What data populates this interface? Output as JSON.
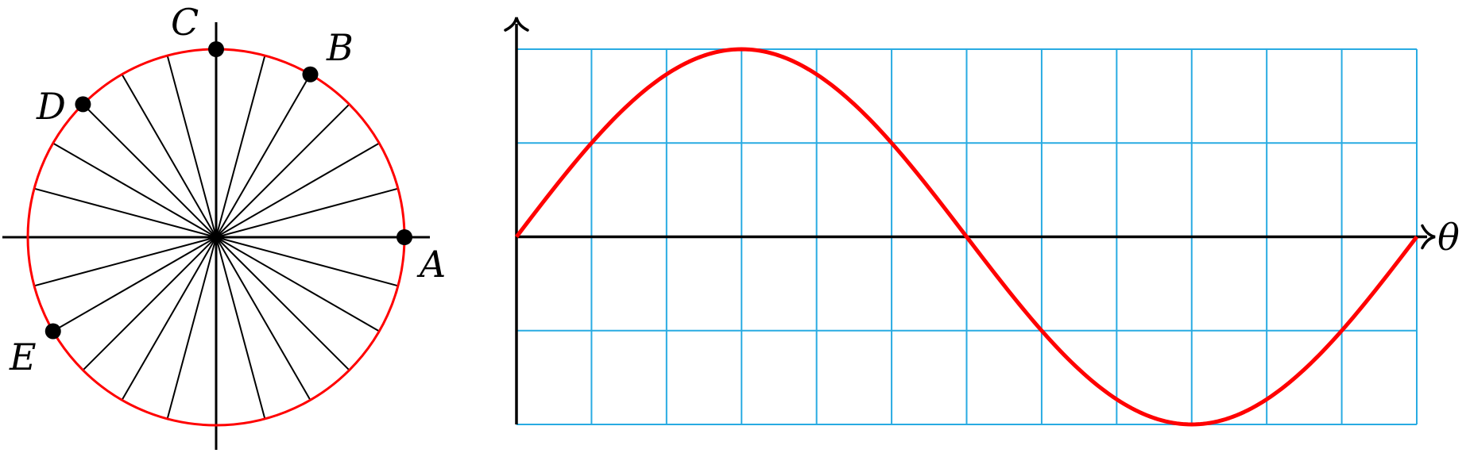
{
  "unit_circle": {
    "spoke_count": 24,
    "points": [
      {
        "label": "A",
        "angle_deg": 0
      },
      {
        "label": "B",
        "angle_deg": 60
      },
      {
        "label": "C",
        "angle_deg": 90
      },
      {
        "label": "D",
        "angle_deg": 135
      },
      {
        "label": "E",
        "angle_deg": 210
      }
    ]
  },
  "graph": {
    "x_axis_label": "θ",
    "grid_columns": 12,
    "grid_rows": 4
  },
  "colors": {
    "curve": "#ff0000",
    "grid": "#29abe2",
    "axis": "#000000",
    "spoke": "#000000",
    "point": "#000000"
  }
}
